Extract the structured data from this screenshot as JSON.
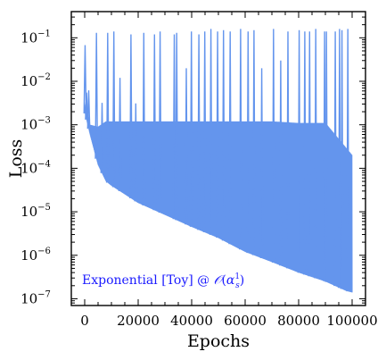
{
  "chart_data": {
    "type": "line",
    "title": "",
    "xlabel": "Epochs",
    "ylabel": "Loss",
    "xlim": [
      -5000,
      105000
    ],
    "ylim": [
      7e-08,
      0.4
    ],
    "yscale": "log",
    "grid": false,
    "xticks": [
      0,
      20000,
      40000,
      60000,
      80000,
      100000
    ],
    "xtick_labels": [
      "0",
      "20000",
      "40000",
      "60000",
      "80000",
      "100000"
    ],
    "yticks": [
      1e-07,
      1e-06,
      1e-05,
      0.0001,
      0.001,
      0.01,
      0.1
    ],
    "ytick_labels": [
      {
        "base": "10",
        "exp": "−7"
      },
      {
        "base": "10",
        "exp": "−6"
      },
      {
        "base": "10",
        "exp": "−5"
      },
      {
        "base": "10",
        "exp": "−4"
      },
      {
        "base": "10",
        "exp": "−3"
      },
      {
        "base": "10",
        "exp": "−2"
      },
      {
        "base": "10",
        "exp": "−1"
      }
    ],
    "series": [
      {
        "color": "#6495ED",
        "upper_envelope": {
          "x": [
            0,
            500,
            2000,
            5000,
            8000,
            12000,
            20000,
            30000,
            40000,
            50000,
            60000,
            70000,
            80000,
            90000,
            100000
          ],
          "y": [
            0.0025,
            0.0035,
            0.001,
            0.0009,
            0.0012,
            0.0012,
            0.0012,
            0.0012,
            0.0012,
            0.0012,
            0.0012,
            0.0012,
            0.0011,
            0.0011,
            0.0002
          ]
        },
        "lower_envelope": {
          "x": [
            0,
            2000,
            5000,
            8000,
            10000,
            20000,
            30000,
            40000,
            50000,
            60000,
            70000,
            80000,
            90000,
            98000,
            100000
          ],
          "y": [
            0.002,
            0.0006,
            0.00012,
            5e-05,
            4e-05,
            1.6e-05,
            8.5e-06,
            4.5e-06,
            2.5e-06,
            1.2e-06,
            7e-07,
            4e-07,
            2.5e-07,
            1.5e-07,
            1.4e-07
          ]
        },
        "spikes": {
          "x": [
            150,
            700,
            1500,
            4400,
            6500,
            8600,
            10900,
            13200,
            17300,
            19100,
            22100,
            26100,
            28200,
            33500,
            34400,
            38000,
            39900,
            42700,
            44900,
            47200,
            49700,
            51900,
            54400,
            58300,
            61100,
            63300,
            66200,
            70600,
            73300,
            76000,
            80200,
            82300,
            84100,
            86400,
            89700,
            90400,
            93700,
            95300,
            96200,
            98400
          ],
          "y": [
            0.068,
            0.0055,
            0.0062,
            0.13,
            0.0032,
            0.13,
            0.14,
            0.012,
            0.12,
            0.0031,
            0.13,
            0.12,
            0.14,
            0.12,
            0.13,
            0.02,
            0.14,
            0.12,
            0.14,
            0.16,
            0.14,
            0.15,
            0.14,
            0.16,
            0.14,
            0.15,
            0.02,
            0.16,
            0.03,
            0.14,
            0.15,
            0.14,
            0.14,
            0.16,
            0.14,
            0.14,
            0.14,
            0.16,
            0.15,
            0.16
          ]
        }
      }
    ],
    "annotation": {
      "text": "Exponential [Toy] @ ",
      "math_script": "𝒪",
      "math_open": "(",
      "math_var": "α",
      "math_sup": "1",
      "math_sub": "s",
      "math_close": ")",
      "color": "#1a1aff"
    }
  }
}
